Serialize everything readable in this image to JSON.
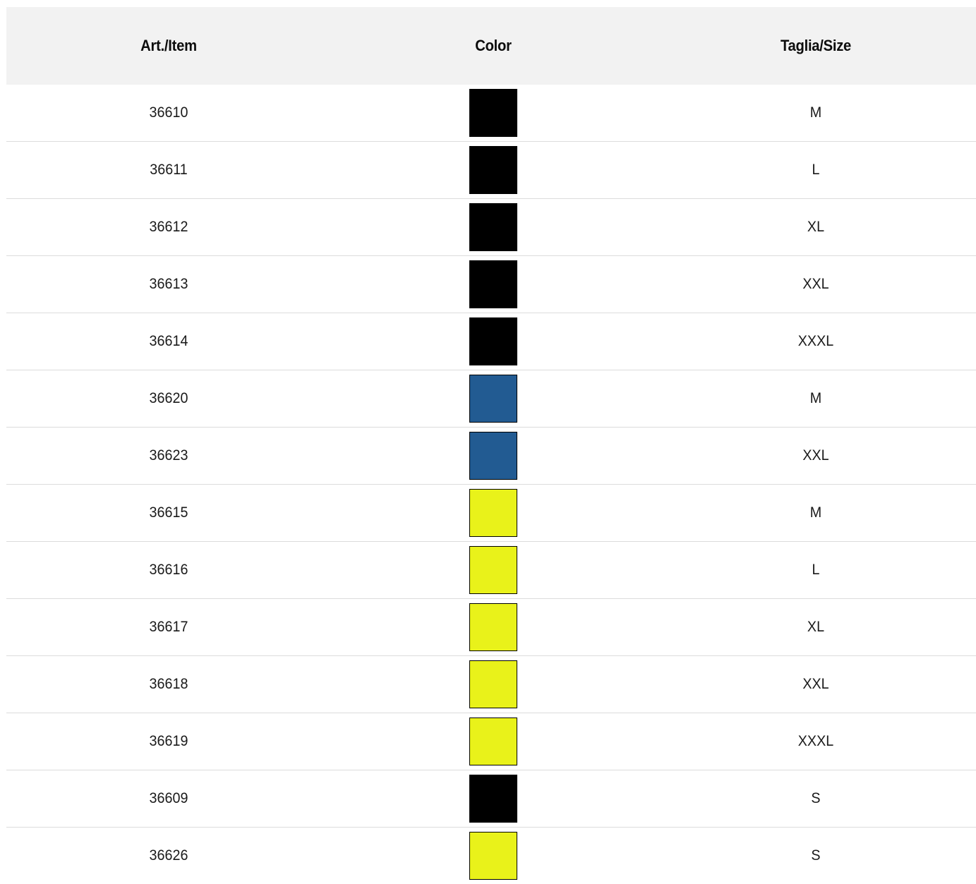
{
  "table": {
    "headers": {
      "item": "Art./Item",
      "color": "Color",
      "size": "Taglia/Size"
    },
    "rows": [
      {
        "item": "36610",
        "color": "#000000",
        "size": "M"
      },
      {
        "item": "36611",
        "color": "#000000",
        "size": "L"
      },
      {
        "item": "36612",
        "color": "#000000",
        "size": "XL"
      },
      {
        "item": "36613",
        "color": "#000000",
        "size": "XXL"
      },
      {
        "item": "36614",
        "color": "#000000",
        "size": "XXXL"
      },
      {
        "item": "36620",
        "color": "#225B92",
        "size": "M"
      },
      {
        "item": "36623",
        "color": "#225B92",
        "size": "XXL"
      },
      {
        "item": "36615",
        "color": "#E9F21A",
        "size": "M"
      },
      {
        "item": "36616",
        "color": "#E9F21A",
        "size": "L"
      },
      {
        "item": "36617",
        "color": "#E9F21A",
        "size": "XL"
      },
      {
        "item": "36618",
        "color": "#E9F21A",
        "size": "XXL"
      },
      {
        "item": "36619",
        "color": "#E9F21A",
        "size": "XXXL"
      },
      {
        "item": "36609",
        "color": "#000000",
        "size": "S"
      },
      {
        "item": "36626",
        "color": "#E9F21A",
        "size": "S"
      }
    ]
  }
}
